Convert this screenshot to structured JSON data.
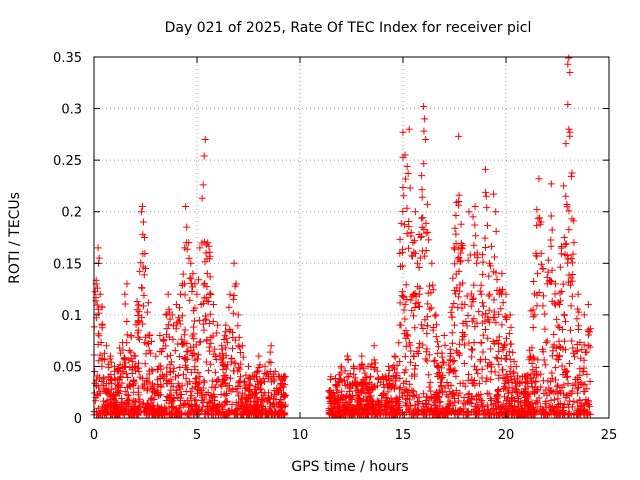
{
  "chart_data": {
    "type": "scatter",
    "title": "Day 021 of 2025, Rate Of TEC Index for receiver picl",
    "xlabel": "GPS time / hours",
    "ylabel": "ROTI / TECUs",
    "xlim": [
      0,
      25
    ],
    "ylim": [
      0,
      0.35
    ],
    "xticks": [
      0,
      5,
      10,
      15,
      20,
      25
    ],
    "yticks": [
      0,
      0.05,
      0.1,
      0.15,
      0.2,
      0.25,
      0.3,
      0.35
    ],
    "xtick_labels": [
      "0",
      "5",
      "10",
      "15",
      "20",
      "25"
    ],
    "ytick_labels": [
      "0",
      "0.05",
      "0.1",
      "0.15",
      "0.2",
      "0.25",
      "0.3",
      "0.35"
    ],
    "grid": true,
    "marker": "+",
    "color": "#ff0000",
    "data_gap_hours": [
      9.3,
      11.4
    ],
    "series": [
      {
        "name": "ROTI",
        "points": [
          [
            0.1,
            0.13
          ],
          [
            0.2,
            0.165
          ],
          [
            0.25,
            0.155
          ],
          [
            0.3,
            0.12
          ],
          [
            0.4,
            0.09
          ],
          [
            0.6,
            0.07
          ],
          [
            0.8,
            0.06
          ],
          [
            1.0,
            0.05
          ],
          [
            1.3,
            0.04
          ],
          [
            1.5,
            0.12
          ],
          [
            1.6,
            0.13
          ],
          [
            1.8,
            0.08
          ],
          [
            2.0,
            0.06
          ],
          [
            2.3,
            0.2
          ],
          [
            2.35,
            0.205
          ],
          [
            2.4,
            0.19
          ],
          [
            2.45,
            0.175
          ],
          [
            2.5,
            0.145
          ],
          [
            2.7,
            0.08
          ],
          [
            3.0,
            0.06
          ],
          [
            3.2,
            0.08
          ],
          [
            3.5,
            0.1
          ],
          [
            3.6,
            0.12
          ],
          [
            3.8,
            0.1
          ],
          [
            4.0,
            0.11
          ],
          [
            4.2,
            0.12
          ],
          [
            4.3,
            0.13
          ],
          [
            4.4,
            0.165
          ],
          [
            4.45,
            0.205
          ],
          [
            4.5,
            0.185
          ],
          [
            4.6,
            0.17
          ],
          [
            4.7,
            0.15
          ],
          [
            4.8,
            0.14
          ],
          [
            4.9,
            0.13
          ],
          [
            5.0,
            0.12
          ],
          [
            5.2,
            0.11
          ],
          [
            5.25,
            0.213
          ],
          [
            5.3,
            0.226
          ],
          [
            5.35,
            0.254
          ],
          [
            5.4,
            0.27
          ],
          [
            5.45,
            0.168
          ],
          [
            5.5,
            0.14
          ],
          [
            5.8,
            0.11
          ],
          [
            6.0,
            0.09
          ],
          [
            6.2,
            0.07
          ],
          [
            6.4,
            0.09
          ],
          [
            6.6,
            0.12
          ],
          [
            6.8,
            0.15
          ],
          [
            6.9,
            0.13
          ],
          [
            7.0,
            0.1
          ],
          [
            7.2,
            0.07
          ],
          [
            7.5,
            0.05
          ],
          [
            7.8,
            0.04
          ],
          [
            8.0,
            0.06
          ],
          [
            8.3,
            0.05
          ],
          [
            8.6,
            0.07
          ],
          [
            8.8,
            0.045
          ],
          [
            9.0,
            0.04
          ],
          [
            9.2,
            0.03
          ],
          [
            11.5,
            0.04
          ],
          [
            11.8,
            0.03
          ],
          [
            12.0,
            0.05
          ],
          [
            12.3,
            0.06
          ],
          [
            12.6,
            0.05
          ],
          [
            13.0,
            0.06
          ],
          [
            13.3,
            0.05
          ],
          [
            13.6,
            0.07
          ],
          [
            14.0,
            0.04
          ],
          [
            14.3,
            0.05
          ],
          [
            14.6,
            0.06
          ],
          [
            14.9,
            0.09
          ],
          [
            15.0,
            0.277
          ],
          [
            15.1,
            0.255
          ],
          [
            15.2,
            0.244
          ],
          [
            15.25,
            0.237
          ],
          [
            15.3,
            0.28
          ],
          [
            15.35,
            0.223
          ],
          [
            15.4,
            0.18
          ],
          [
            15.5,
            0.12
          ],
          [
            15.6,
            0.2
          ],
          [
            15.7,
            0.15
          ],
          [
            15.8,
            0.12
          ],
          [
            15.9,
            0.235
          ],
          [
            16.0,
            0.302
          ],
          [
            16.05,
            0.29
          ],
          [
            16.1,
            0.27
          ],
          [
            16.2,
            0.18
          ],
          [
            16.4,
            0.15
          ],
          [
            16.6,
            0.1
          ],
          [
            17.0,
            0.08
          ],
          [
            17.3,
            0.06
          ],
          [
            17.5,
            0.09
          ],
          [
            17.7,
            0.273
          ],
          [
            17.8,
            0.16
          ],
          [
            18.0,
            0.11
          ],
          [
            18.2,
            0.2
          ],
          [
            18.4,
            0.195
          ],
          [
            18.5,
            0.205
          ],
          [
            18.6,
            0.16
          ],
          [
            18.8,
            0.12
          ],
          [
            19.0,
            0.241
          ],
          [
            19.2,
            0.15
          ],
          [
            19.4,
            0.217
          ],
          [
            19.5,
            0.2
          ],
          [
            19.8,
            0.14
          ],
          [
            20.0,
            0.12
          ],
          [
            20.2,
            0.1
          ],
          [
            20.5,
            0.05
          ],
          [
            20.8,
            0.04
          ],
          [
            21.2,
            0.06
          ],
          [
            21.4,
            0.1
          ],
          [
            21.5,
            0.202
          ],
          [
            21.6,
            0.232
          ],
          [
            21.7,
            0.19
          ],
          [
            21.8,
            0.145
          ],
          [
            22.0,
            0.13
          ],
          [
            22.2,
            0.227
          ],
          [
            22.4,
            0.13
          ],
          [
            22.6,
            0.11
          ],
          [
            22.8,
            0.225
          ],
          [
            22.9,
            0.215
          ],
          [
            23.0,
            0.343
          ],
          [
            23.05,
            0.349
          ],
          [
            23.1,
            0.335
          ],
          [
            23.0,
            0.304
          ],
          [
            23.05,
            0.28
          ],
          [
            23.1,
            0.277
          ],
          [
            23.2,
            0.193
          ],
          [
            23.3,
            0.17
          ],
          [
            23.5,
            0.12
          ],
          [
            23.8,
            0.1
          ],
          [
            24.0,
            0.11
          ]
        ]
      }
    ]
  }
}
